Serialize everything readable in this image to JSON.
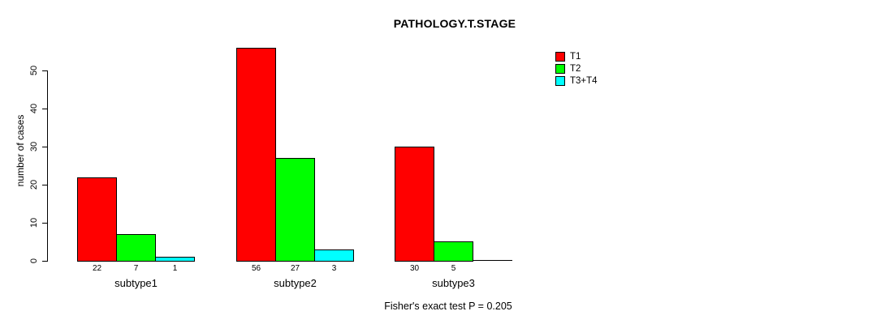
{
  "title": "PATHOLOGY.T.STAGE",
  "colors": {
    "background": "#FFFFFF",
    "text": "#000000",
    "axis": "#000000",
    "bar_border": "#000000"
  },
  "chart_data": {
    "type": "bar",
    "grouped": true,
    "title": "PATHOLOGY.T.STAGE",
    "categories": [
      "subtype1",
      "subtype2",
      "subtype3"
    ],
    "series": [
      {
        "name": "T1",
        "color": "#FF0000",
        "values": [
          22,
          56,
          30
        ]
      },
      {
        "name": "T2",
        "color": "#00FF00",
        "values": [
          7,
          27,
          5
        ]
      },
      {
        "name": "T3+T4",
        "color": "#00FFFF",
        "values": [
          1,
          3,
          0
        ]
      }
    ],
    "bar_value_labels": [
      [
        "22",
        "7",
        "1"
      ],
      [
        "56",
        "27",
        "3"
      ],
      [
        "30",
        "5",
        ""
      ]
    ],
    "xlabel": "",
    "ylabel": "number of cases",
    "ylim": [
      0,
      50
    ],
    "yticks": [
      "0",
      "10",
      "20",
      "30",
      "40",
      "50"
    ],
    "grid": false,
    "legend_position": "top-right",
    "legend": [
      "T1",
      "T2",
      "T3+T4"
    ],
    "caption": "Fisher's exact test P = 0.205"
  }
}
